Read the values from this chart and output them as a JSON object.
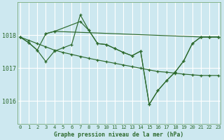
{
  "title": "Graphe pression niveau de la mer (hPa)",
  "bg_color": "#cde8f0",
  "grid_color": "#ffffff",
  "line_color": "#2d6a2d",
  "yticks": [
    1016,
    1017,
    1018
  ],
  "ylim": [
    1015.3,
    1019.0
  ],
  "xlim": [
    -0.3,
    23.3
  ],
  "xlabel_bottom": "Graphe pression niveau de la mer (hPa)",
  "line1_x": [
    0,
    1,
    2,
    3,
    4,
    5,
    6,
    7,
    8,
    9,
    10,
    11,
    12,
    13,
    14,
    15,
    16,
    17,
    18,
    19,
    20,
    21,
    22,
    23
  ],
  "line1_y": [
    1017.95,
    1017.78,
    1017.55,
    1017.2,
    1017.52,
    1017.62,
    1017.72,
    1018.62,
    1018.15,
    1017.75,
    1017.72,
    1017.6,
    1017.48,
    1017.38,
    1017.52,
    1015.9,
    1016.32,
    1016.62,
    1016.88,
    1017.22,
    1017.75,
    1017.95,
    1017.95,
    1017.95
  ],
  "line2_x": [
    0,
    1,
    2,
    3,
    4,
    5,
    6,
    7,
    8,
    9,
    10,
    11,
    12,
    13,
    14,
    15,
    16,
    17,
    18,
    19,
    20,
    21,
    22,
    23
  ],
  "line2_y": [
    1017.95,
    1017.85,
    1017.75,
    1017.65,
    1017.55,
    1017.48,
    1017.42,
    1017.36,
    1017.3,
    1017.25,
    1017.2,
    1017.15,
    1017.1,
    1017.05,
    1017.0,
    1016.95,
    1016.9,
    1016.88,
    1016.85,
    1016.82,
    1016.8,
    1016.78,
    1016.78,
    1016.78
  ],
  "line3_x": [
    3,
    4,
    7,
    8,
    9,
    10,
    11,
    12,
    13,
    14,
    15,
    16,
    17,
    18,
    19,
    20,
    21,
    22,
    23
  ],
  "line3_y": [
    1018.05,
    1018.12,
    1018.42,
    1018.15,
    1017.75,
    1017.72,
    1017.6,
    1017.48,
    1017.38,
    1017.52,
    1015.9,
    1016.32,
    1016.62,
    1016.88,
    1017.22,
    1017.75,
    1017.95,
    1017.95,
    1017.95
  ],
  "line4_x": [
    0,
    1,
    2,
    3,
    4,
    21,
    22,
    23
  ],
  "line4_y": [
    1017.95,
    1017.78,
    1017.55,
    1018.05,
    1018.12,
    1017.95,
    1017.95,
    1017.95
  ]
}
